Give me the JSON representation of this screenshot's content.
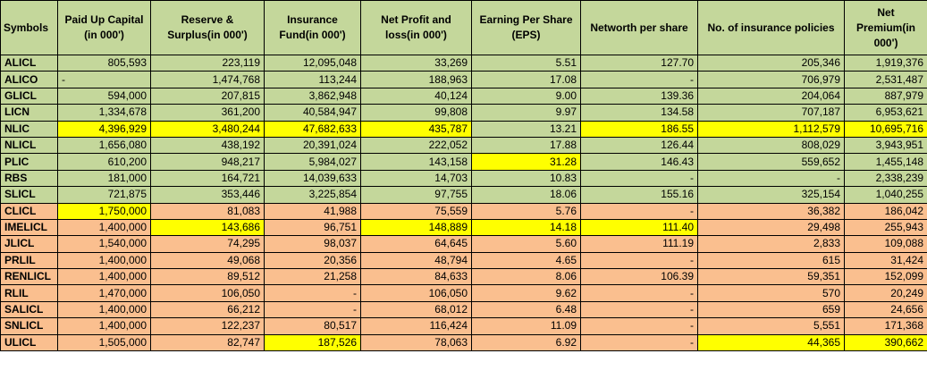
{
  "headers": [
    "Symbols",
    "Paid Up Capital (in 000')",
    "Reserve & Surplus(in 000')",
    "Insurance Fund(in 000')",
    "Net Profit and loss(in 000')",
    "Earning Per Share (EPS)",
    "Networth per share",
    "No. of insurance policies",
    "Net Premium(in 000')"
  ],
  "colors": {
    "header_bg": "#c4d79b",
    "life_group_bg": "#c4d79b",
    "nonlife_group_bg": "#fabf8f",
    "highlight": "#ffff00"
  },
  "rows": [
    {
      "group": "green",
      "cells": [
        "ALICL",
        "805,593",
        "223,119",
        "12,095,048",
        "33,269",
        "5.51",
        "127.70",
        "205,346",
        "1,919,376"
      ],
      "hl": []
    },
    {
      "group": "green",
      "cells": [
        "ALICO",
        "-",
        "1,474,768",
        "113,244",
        "188,963",
        "17.08",
        "-",
        "706,979",
        "2,531,487"
      ],
      "hl": []
    },
    {
      "group": "green",
      "cells": [
        "GLICL",
        "594,000",
        "207,815",
        "3,862,948",
        "40,124",
        "9.00",
        "139.36",
        "204,064",
        "887,979"
      ],
      "hl": []
    },
    {
      "group": "green",
      "cells": [
        "LICN",
        "1,334,678",
        "361,200",
        "40,584,947",
        "99,808",
        "9.97",
        "134.58",
        "707,187",
        "6,953,621"
      ],
      "hl": []
    },
    {
      "group": "green",
      "cells": [
        "NLIC",
        "4,396,929",
        "3,480,244",
        "47,682,633",
        "435,787",
        "13.21",
        "186.55",
        "1,112,579",
        "10,695,716"
      ],
      "hl": [
        1,
        2,
        3,
        4,
        6,
        7,
        8
      ]
    },
    {
      "group": "green",
      "cells": [
        "NLICL",
        "1,656,080",
        "438,192",
        "20,391,024",
        "222,052",
        "17.88",
        "126.44",
        "808,029",
        "3,943,951"
      ],
      "hl": []
    },
    {
      "group": "green",
      "cells": [
        "PLIC",
        "610,200",
        "948,217",
        "5,984,027",
        "143,158",
        "31.28",
        "146.43",
        "559,652",
        "1,455,148"
      ],
      "hl": [
        5
      ]
    },
    {
      "group": "green",
      "cells": [
        "RBS",
        "181,000",
        "164,721",
        "14,039,633",
        "14,703",
        "10.83",
        "-",
        "-",
        "2,338,239"
      ],
      "hl": []
    },
    {
      "group": "green",
      "cells": [
        "SLICL",
        "721,875",
        "353,446",
        "3,225,854",
        "97,755",
        "18.06",
        "155.16",
        "325,154",
        "1,040,255"
      ],
      "hl": []
    },
    {
      "group": "orange",
      "cells": [
        "CLICL",
        "1,750,000",
        "81,083",
        "41,988",
        "75,559",
        "5.76",
        "-",
        "36,382",
        "186,042"
      ],
      "hl": [
        1
      ]
    },
    {
      "group": "orange",
      "cells": [
        "IMELICL",
        "1,400,000",
        "143,686",
        "96,751",
        "148,889",
        "14.18",
        "111.40",
        "29,498",
        "255,943"
      ],
      "hl": [
        2,
        4,
        5,
        6
      ]
    },
    {
      "group": "orange",
      "cells": [
        "JLICL",
        "1,540,000",
        "74,295",
        "98,037",
        "64,645",
        "5.60",
        "111.19",
        "2,833",
        "109,088"
      ],
      "hl": []
    },
    {
      "group": "orange",
      "cells": [
        "PRLIL",
        "1,400,000",
        "49,068",
        "20,356",
        "48,794",
        "4.65",
        "-",
        "615",
        "31,424"
      ],
      "hl": []
    },
    {
      "group": "orange",
      "cells": [
        "RENLICL",
        "1,400,000",
        "89,512",
        "21,258",
        "84,633",
        "8.06",
        "106.39",
        "59,351",
        "152,099"
      ],
      "hl": []
    },
    {
      "group": "orange",
      "cells": [
        "RLIL",
        "1,470,000",
        "106,050",
        "-",
        "106,050",
        "9.62",
        "-",
        "570",
        "20,249"
      ],
      "hl": []
    },
    {
      "group": "orange",
      "cells": [
        "SALICL",
        "1,400,000",
        "66,212",
        "-",
        "68,012",
        "6.48",
        "-",
        "659",
        "24,656"
      ],
      "hl": []
    },
    {
      "group": "orange",
      "cells": [
        "SNLICL",
        "1,400,000",
        "122,237",
        "80,517",
        "116,424",
        "11.09",
        "-",
        "5,551",
        "171,368"
      ],
      "hl": []
    },
    {
      "group": "orange",
      "cells": [
        "ULICL",
        "1,505,000",
        "82,747",
        "187,526",
        "78,063",
        "6.92",
        "-",
        "44,365",
        "390,662"
      ],
      "hl": [
        3,
        7,
        8
      ]
    }
  ]
}
